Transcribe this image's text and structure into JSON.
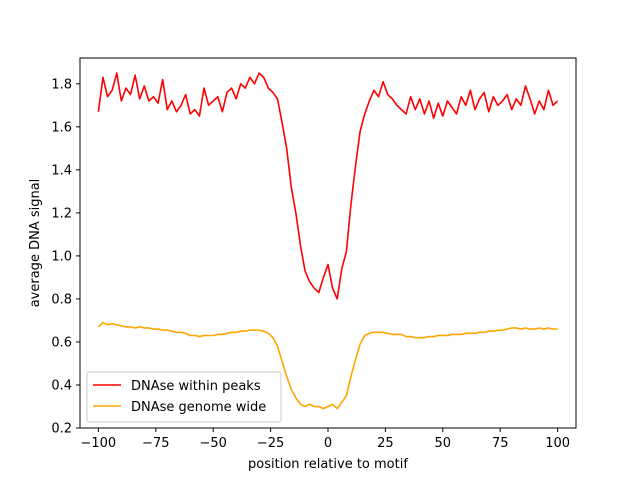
{
  "chart_data": {
    "type": "line",
    "xlabel": "position relative to motif",
    "ylabel": "average DNA signal",
    "xlim": [
      -108,
      108
    ],
    "ylim": [
      0.2,
      1.92
    ],
    "xticks": [
      -100,
      -75,
      -50,
      -25,
      0,
      25,
      50,
      75,
      100
    ],
    "xtick_labels": [
      "−100",
      "−75",
      "−50",
      "−25",
      "0",
      "25",
      "50",
      "75",
      "100"
    ],
    "yticks": [
      0.2,
      0.4,
      0.6,
      0.8,
      1.0,
      1.2,
      1.4,
      1.6,
      1.8
    ],
    "ytick_labels": [
      "0.2",
      "0.4",
      "0.6",
      "0.8",
      "1.0",
      "1.2",
      "1.4",
      "1.6",
      "1.8"
    ],
    "grid": false,
    "legend_position": "lower-left",
    "series": [
      {
        "name": "DNAse within peaks",
        "color": "#ff0000",
        "x": [
          -100,
          -98,
          -96,
          -94,
          -92,
          -90,
          -88,
          -86,
          -84,
          -82,
          -80,
          -78,
          -76,
          -74,
          -72,
          -70,
          -68,
          -66,
          -64,
          -62,
          -60,
          -58,
          -56,
          -54,
          -52,
          -50,
          -48,
          -46,
          -44,
          -42,
          -40,
          -38,
          -36,
          -34,
          -32,
          -30,
          -28,
          -26,
          -24,
          -22,
          -20,
          -18,
          -16,
          -14,
          -12,
          -10,
          -8,
          -6,
          -4,
          -2,
          0,
          2,
          4,
          6,
          8,
          10,
          12,
          14,
          16,
          18,
          20,
          22,
          24,
          26,
          28,
          30,
          32,
          34,
          36,
          38,
          40,
          42,
          44,
          46,
          48,
          50,
          52,
          54,
          56,
          58,
          60,
          62,
          64,
          66,
          68,
          70,
          72,
          74,
          76,
          78,
          80,
          82,
          84,
          86,
          88,
          90,
          92,
          94,
          96,
          98,
          100
        ],
        "y": [
          1.67,
          1.83,
          1.74,
          1.77,
          1.85,
          1.72,
          1.78,
          1.75,
          1.84,
          1.73,
          1.79,
          1.72,
          1.74,
          1.71,
          1.82,
          1.68,
          1.72,
          1.67,
          1.7,
          1.75,
          1.66,
          1.68,
          1.65,
          1.78,
          1.7,
          1.72,
          1.74,
          1.67,
          1.76,
          1.78,
          1.73,
          1.8,
          1.78,
          1.83,
          1.8,
          1.85,
          1.83,
          1.78,
          1.76,
          1.73,
          1.62,
          1.5,
          1.32,
          1.2,
          1.05,
          0.93,
          0.88,
          0.85,
          0.83,
          0.9,
          0.96,
          0.85,
          0.8,
          0.94,
          1.02,
          1.24,
          1.42,
          1.58,
          1.66,
          1.72,
          1.77,
          1.74,
          1.81,
          1.75,
          1.73,
          1.7,
          1.68,
          1.66,
          1.74,
          1.68,
          1.73,
          1.66,
          1.72,
          1.64,
          1.71,
          1.65,
          1.72,
          1.69,
          1.66,
          1.74,
          1.7,
          1.77,
          1.68,
          1.73,
          1.76,
          1.67,
          1.74,
          1.7,
          1.72,
          1.75,
          1.68,
          1.73,
          1.7,
          1.79,
          1.73,
          1.66,
          1.72,
          1.68,
          1.77,
          1.7,
          1.72
        ]
      },
      {
        "name": "DNAse genome wide",
        "color": "#ffa500",
        "x": [
          -100,
          -98,
          -96,
          -94,
          -92,
          -90,
          -88,
          -86,
          -84,
          -82,
          -80,
          -78,
          -76,
          -74,
          -72,
          -70,
          -68,
          -66,
          -64,
          -62,
          -60,
          -58,
          -56,
          -54,
          -52,
          -50,
          -48,
          -46,
          -44,
          -42,
          -40,
          -38,
          -36,
          -34,
          -32,
          -30,
          -28,
          -26,
          -24,
          -22,
          -20,
          -18,
          -16,
          -14,
          -12,
          -10,
          -8,
          -6,
          -4,
          -2,
          0,
          2,
          4,
          6,
          8,
          10,
          12,
          14,
          16,
          18,
          20,
          22,
          24,
          26,
          28,
          30,
          32,
          34,
          36,
          38,
          40,
          42,
          44,
          46,
          48,
          50,
          52,
          54,
          56,
          58,
          60,
          62,
          64,
          66,
          68,
          70,
          72,
          74,
          76,
          78,
          80,
          82,
          84,
          86,
          88,
          90,
          92,
          94,
          96,
          98,
          100
        ],
        "y": [
          0.67,
          0.69,
          0.68,
          0.685,
          0.68,
          0.675,
          0.67,
          0.67,
          0.665,
          0.67,
          0.665,
          0.665,
          0.66,
          0.66,
          0.655,
          0.655,
          0.65,
          0.645,
          0.645,
          0.64,
          0.63,
          0.63,
          0.625,
          0.63,
          0.63,
          0.63,
          0.635,
          0.635,
          0.64,
          0.645,
          0.645,
          0.65,
          0.65,
          0.655,
          0.655,
          0.655,
          0.65,
          0.64,
          0.62,
          0.58,
          0.51,
          0.44,
          0.38,
          0.34,
          0.31,
          0.3,
          0.31,
          0.3,
          0.3,
          0.29,
          0.3,
          0.31,
          0.29,
          0.32,
          0.35,
          0.44,
          0.52,
          0.59,
          0.63,
          0.64,
          0.645,
          0.645,
          0.645,
          0.64,
          0.635,
          0.635,
          0.635,
          0.625,
          0.625,
          0.62,
          0.62,
          0.62,
          0.625,
          0.625,
          0.63,
          0.63,
          0.63,
          0.635,
          0.635,
          0.635,
          0.64,
          0.64,
          0.64,
          0.645,
          0.645,
          0.65,
          0.65,
          0.655,
          0.655,
          0.66,
          0.665,
          0.665,
          0.66,
          0.665,
          0.66,
          0.66,
          0.665,
          0.66,
          0.665,
          0.66,
          0.66
        ]
      }
    ]
  }
}
